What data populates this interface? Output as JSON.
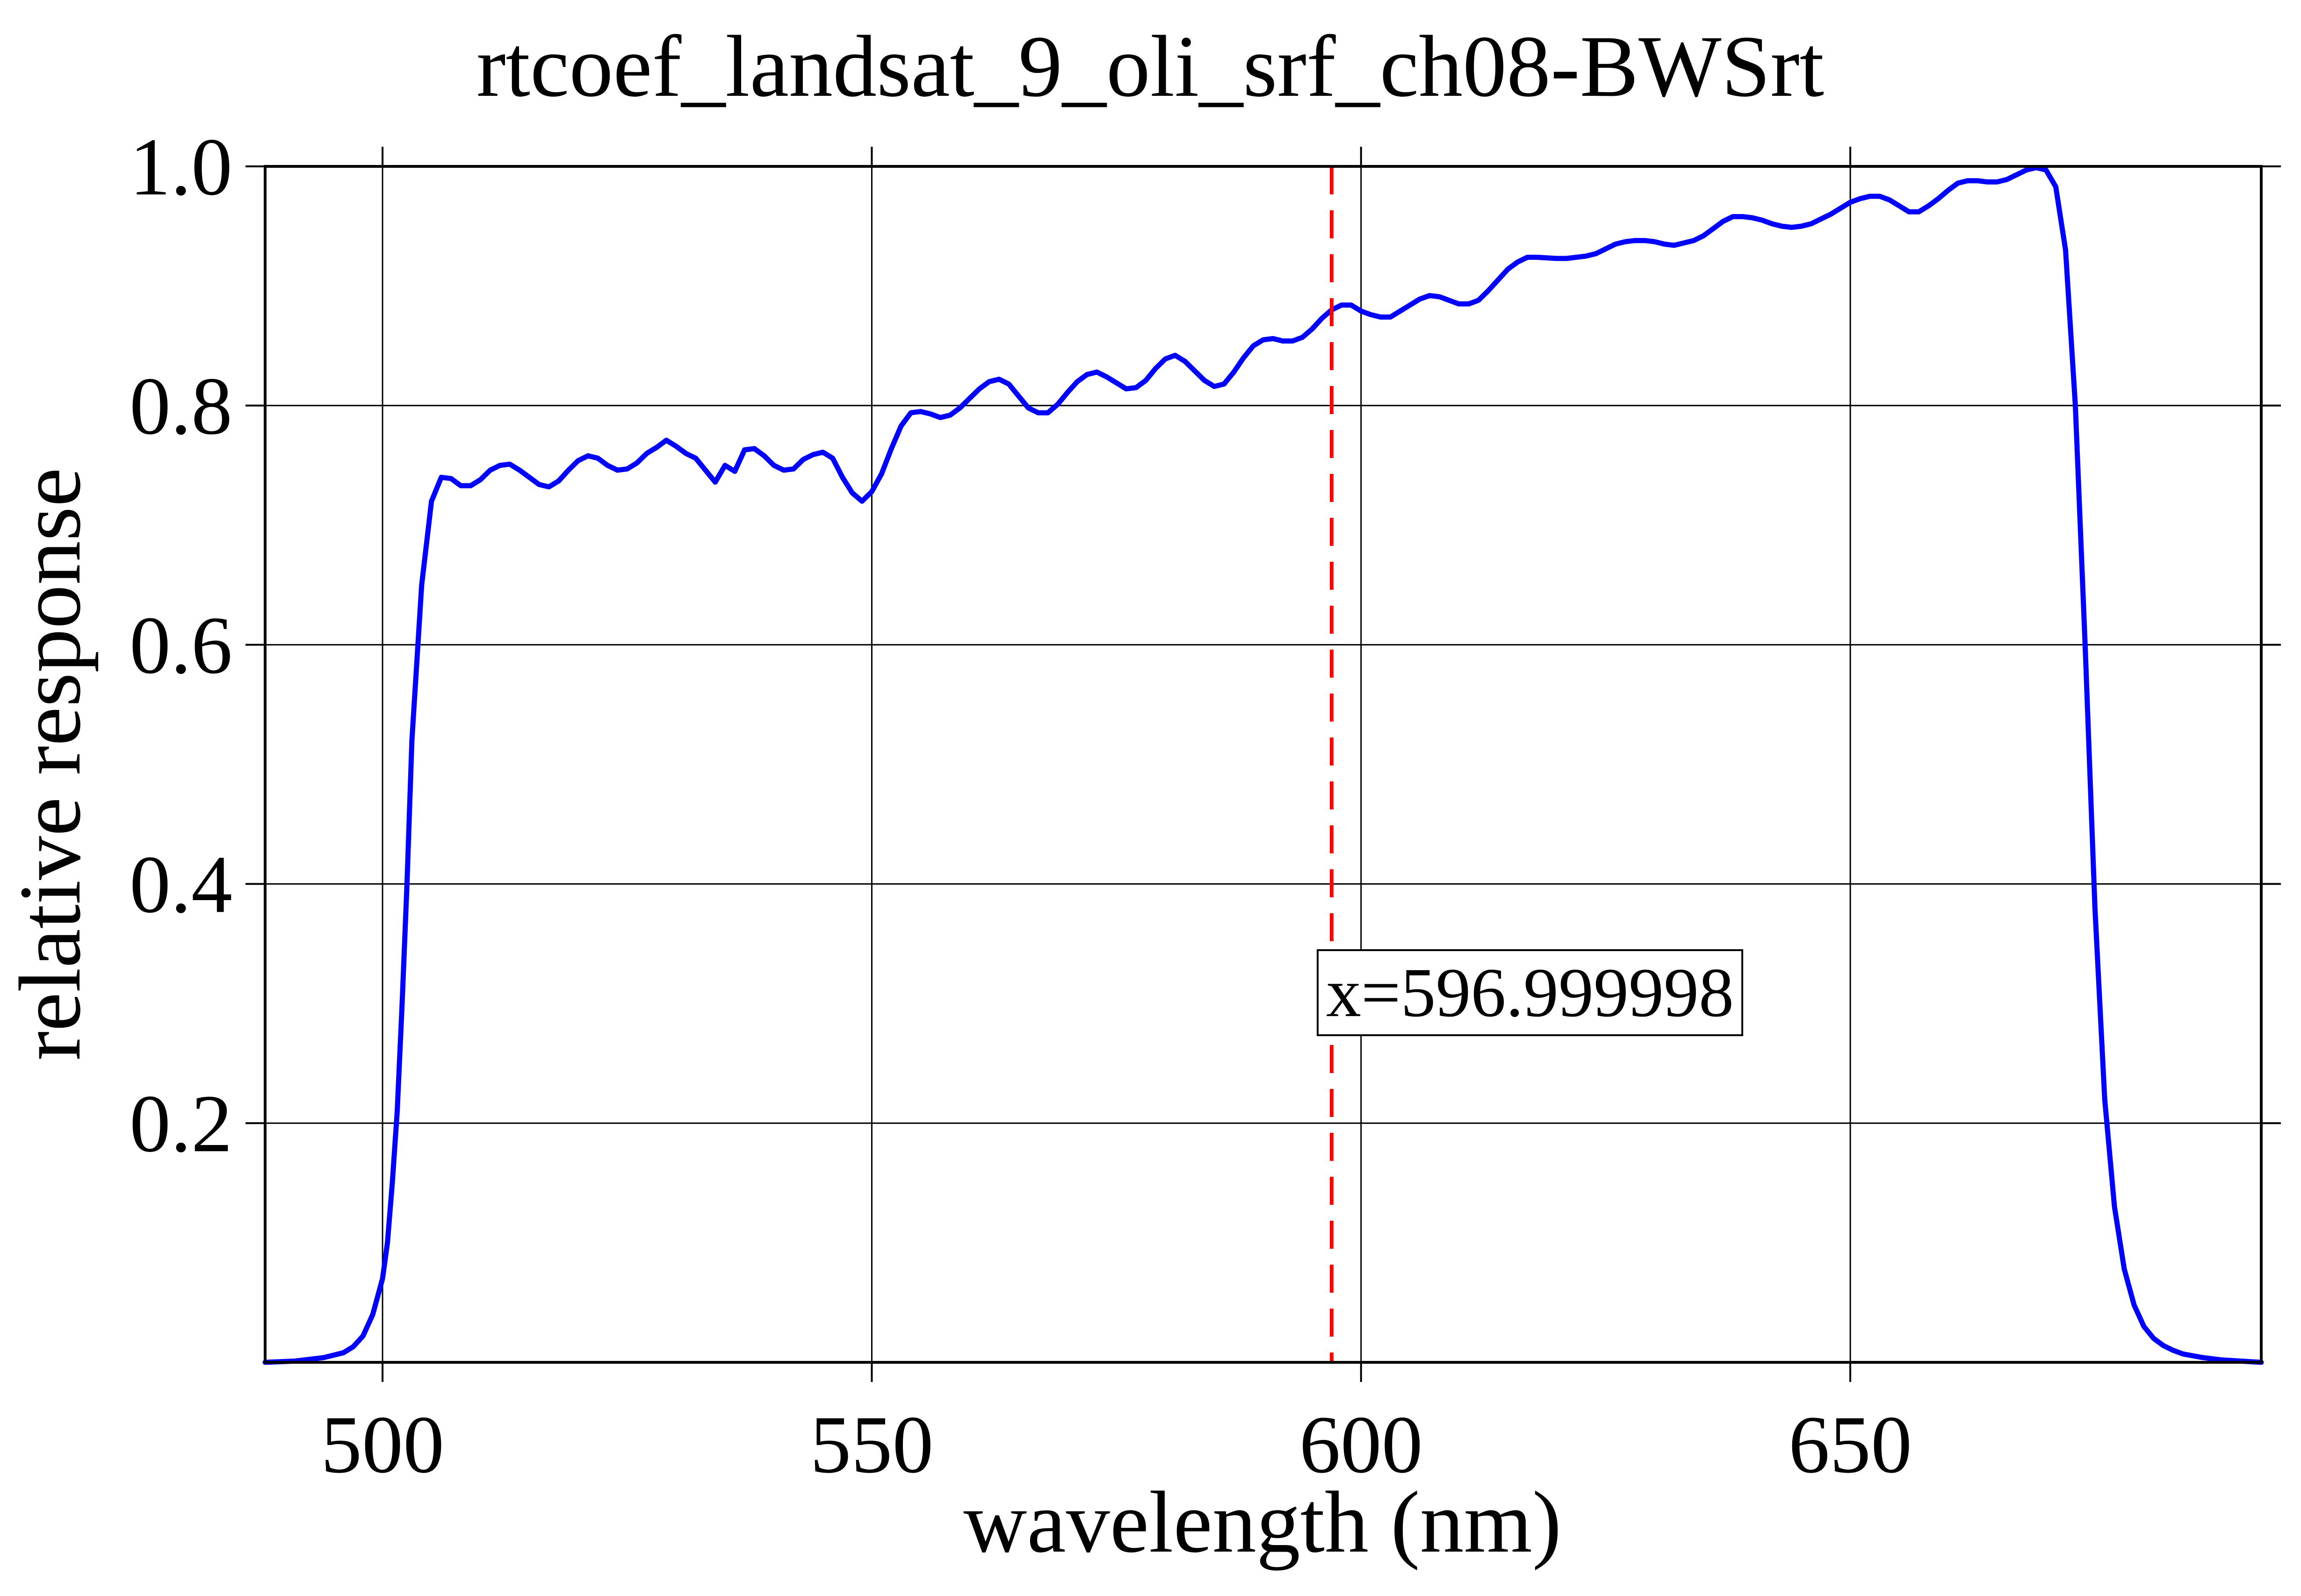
{
  "chart_data": {
    "type": "line",
    "title": "rtcoef_landsat_9_oli_srf_ch08-BWSrt",
    "xlabel": "wavelength (nm)",
    "ylabel": "relative response",
    "xlim": [
      488,
      692
    ],
    "ylim": [
      0,
      1.0
    ],
    "x_ticks": [
      500,
      550,
      600,
      650
    ],
    "x_tick_labels": [
      "500",
      "550",
      "600",
      "650"
    ],
    "y_ticks": [
      0.2,
      0.4,
      0.6,
      0.8,
      1.0
    ],
    "y_tick_labels": [
      "0.2",
      "0.4",
      "0.6",
      "0.8",
      "1.0"
    ],
    "grid": true,
    "series": [
      {
        "color": "#0000ff",
        "points": [
          [
            488,
            0.0
          ],
          [
            491,
            0.001
          ],
          [
            494,
            0.004
          ],
          [
            496,
            0.008
          ],
          [
            497,
            0.013
          ],
          [
            498,
            0.022
          ],
          [
            499,
            0.04
          ],
          [
            500,
            0.07
          ],
          [
            500.5,
            0.1
          ],
          [
            501,
            0.15
          ],
          [
            501.5,
            0.21
          ],
          [
            502,
            0.3
          ],
          [
            502.5,
            0.4
          ],
          [
            503,
            0.52
          ],
          [
            504,
            0.65
          ],
          [
            505,
            0.72
          ],
          [
            506,
            0.74
          ],
          [
            507,
            0.739
          ],
          [
            508,
            0.733
          ],
          [
            509,
            0.733
          ],
          [
            510,
            0.738
          ],
          [
            511,
            0.746
          ],
          [
            512,
            0.75
          ],
          [
            513,
            0.751
          ],
          [
            514,
            0.746
          ],
          [
            515,
            0.74
          ],
          [
            516,
            0.734
          ],
          [
            517,
            0.732
          ],
          [
            518,
            0.737
          ],
          [
            519,
            0.746
          ],
          [
            520,
            0.754
          ],
          [
            521,
            0.758
          ],
          [
            522,
            0.756
          ],
          [
            523,
            0.75
          ],
          [
            524,
            0.746
          ],
          [
            525,
            0.747
          ],
          [
            526,
            0.752
          ],
          [
            527,
            0.76
          ],
          [
            528,
            0.765
          ],
          [
            529,
            0.771
          ],
          [
            530,
            0.766
          ],
          [
            531,
            0.76
          ],
          [
            532,
            0.756
          ],
          [
            533,
            0.746
          ],
          [
            534,
            0.736
          ],
          [
            535,
            0.75
          ],
          [
            536,
            0.745
          ],
          [
            537,
            0.763
          ],
          [
            538,
            0.764
          ],
          [
            539,
            0.758
          ],
          [
            540,
            0.75
          ],
          [
            541,
            0.746
          ],
          [
            542,
            0.747
          ],
          [
            543,
            0.755
          ],
          [
            544,
            0.759
          ],
          [
            545,
            0.761
          ],
          [
            546,
            0.756
          ],
          [
            547,
            0.74
          ],
          [
            548,
            0.727
          ],
          [
            549,
            0.72
          ],
          [
            550,
            0.728
          ],
          [
            551,
            0.743
          ],
          [
            552,
            0.764
          ],
          [
            553,
            0.783
          ],
          [
            554,
            0.794
          ],
          [
            555,
            0.795
          ],
          [
            556,
            0.793
          ],
          [
            557,
            0.79
          ],
          [
            558,
            0.792
          ],
          [
            559,
            0.798
          ],
          [
            560,
            0.806
          ],
          [
            561,
            0.814
          ],
          [
            562,
            0.82
          ],
          [
            563,
            0.822
          ],
          [
            564,
            0.818
          ],
          [
            565,
            0.808
          ],
          [
            566,
            0.798
          ],
          [
            567,
            0.794
          ],
          [
            568,
            0.794
          ],
          [
            569,
            0.801
          ],
          [
            570,
            0.811
          ],
          [
            571,
            0.82
          ],
          [
            572,
            0.826
          ],
          [
            573,
            0.828
          ],
          [
            574,
            0.824
          ],
          [
            575,
            0.819
          ],
          [
            576,
            0.814
          ],
          [
            577,
            0.815
          ],
          [
            578,
            0.821
          ],
          [
            579,
            0.831
          ],
          [
            580,
            0.839
          ],
          [
            581,
            0.842
          ],
          [
            582,
            0.837
          ],
          [
            583,
            0.829
          ],
          [
            584,
            0.821
          ],
          [
            585,
            0.816
          ],
          [
            586,
            0.818
          ],
          [
            587,
            0.828
          ],
          [
            588,
            0.84
          ],
          [
            589,
            0.85
          ],
          [
            590,
            0.855
          ],
          [
            591,
            0.856
          ],
          [
            592,
            0.854
          ],
          [
            593,
            0.854
          ],
          [
            594,
            0.857
          ],
          [
            595,
            0.864
          ],
          [
            596,
            0.873
          ],
          [
            597,
            0.88
          ],
          [
            598,
            0.884
          ],
          [
            599,
            0.884
          ],
          [
            600,
            0.879
          ],
          [
            601,
            0.876
          ],
          [
            602,
            0.874
          ],
          [
            603,
            0.874
          ],
          [
            604,
            0.879
          ],
          [
            605,
            0.884
          ],
          [
            606,
            0.889
          ],
          [
            607,
            0.892
          ],
          [
            608,
            0.891
          ],
          [
            609,
            0.888
          ],
          [
            610,
            0.885
          ],
          [
            611,
            0.885
          ],
          [
            612,
            0.888
          ],
          [
            613,
            0.896
          ],
          [
            614,
            0.905
          ],
          [
            615,
            0.914
          ],
          [
            616,
            0.92
          ],
          [
            617,
            0.924
          ],
          [
            618,
            0.924
          ],
          [
            620,
            0.923
          ],
          [
            621,
            0.923
          ],
          [
            623,
            0.925
          ],
          [
            624,
            0.927
          ],
          [
            625,
            0.931
          ],
          [
            626,
            0.935
          ],
          [
            627,
            0.937
          ],
          [
            628,
            0.938
          ],
          [
            629,
            0.938
          ],
          [
            630,
            0.937
          ],
          [
            631,
            0.935
          ],
          [
            632,
            0.934
          ],
          [
            633,
            0.936
          ],
          [
            634,
            0.938
          ],
          [
            635,
            0.942
          ],
          [
            636,
            0.948
          ],
          [
            637,
            0.954
          ],
          [
            638,
            0.958
          ],
          [
            639,
            0.958
          ],
          [
            640,
            0.957
          ],
          [
            641,
            0.955
          ],
          [
            642,
            0.952
          ],
          [
            643,
            0.95
          ],
          [
            644,
            0.949
          ],
          [
            645,
            0.95
          ],
          [
            646,
            0.952
          ],
          [
            647,
            0.956
          ],
          [
            648,
            0.96
          ],
          [
            649,
            0.965
          ],
          [
            650,
            0.97
          ],
          [
            651,
            0.973
          ],
          [
            652,
            0.975
          ],
          [
            653,
            0.975
          ],
          [
            654,
            0.972
          ],
          [
            655,
            0.967
          ],
          [
            656,
            0.962
          ],
          [
            657,
            0.962
          ],
          [
            658,
            0.967
          ],
          [
            659,
            0.973
          ],
          [
            660,
            0.98
          ],
          [
            661,
            0.986
          ],
          [
            662,
            0.988
          ],
          [
            663,
            0.988
          ],
          [
            664,
            0.987
          ],
          [
            665,
            0.987
          ],
          [
            666,
            0.989
          ],
          [
            667,
            0.993
          ],
          [
            668,
            0.997
          ],
          [
            669,
            0.999
          ],
          [
            670,
            0.997
          ],
          [
            671,
            0.983
          ],
          [
            672,
            0.93
          ],
          [
            673,
            0.8
          ],
          [
            674,
            0.6
          ],
          [
            675,
            0.38
          ],
          [
            676,
            0.22
          ],
          [
            677,
            0.13
          ],
          [
            678,
            0.078
          ],
          [
            679,
            0.048
          ],
          [
            680,
            0.03
          ],
          [
            681,
            0.02
          ],
          [
            682,
            0.014
          ],
          [
            683,
            0.01
          ],
          [
            684,
            0.007
          ],
          [
            686,
            0.004
          ],
          [
            688,
            0.002
          ],
          [
            692,
            0.0
          ]
        ]
      }
    ],
    "vline": {
      "x": 596.999998,
      "color": "#ff0000",
      "style": "dashed"
    },
    "annotation": {
      "text": "x=596.999998",
      "x": 597,
      "y": 0.27
    }
  }
}
